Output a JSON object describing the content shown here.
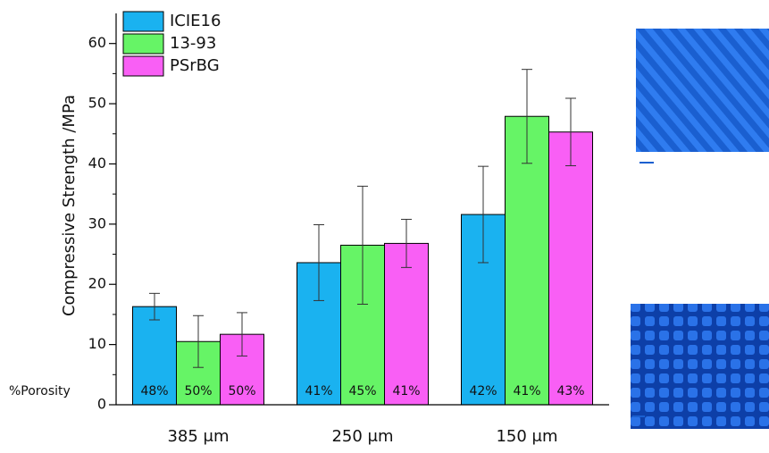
{
  "chart_data": {
    "type": "bar",
    "y_label": "Compressive Strength /MPa",
    "annotation": "%Porosity",
    "categories": [
      "385 μm",
      "250  μm",
      "150 μm"
    ],
    "series": [
      {
        "name": "ICIE16",
        "color": "#1ab2f0",
        "values": [
          16.3,
          23.6,
          31.6
        ],
        "errors": [
          2.2,
          6.3,
          8.0
        ],
        "porosity_labels": [
          "48%",
          "41%",
          "42%"
        ]
      },
      {
        "name": "13-93",
        "color": "#66f466",
        "values": [
          10.5,
          26.5,
          47.9
        ],
        "errors": [
          4.3,
          9.8,
          7.8
        ],
        "porosity_labels": [
          "50%",
          "45%",
          "41%"
        ]
      },
      {
        "name": "PSrBG",
        "color": "#f95ff5",
        "values": [
          11.7,
          26.8,
          45.3
        ],
        "errors": [
          3.6,
          4.0,
          5.6
        ],
        "porosity_labels": [
          "50%",
          "41%",
          "43%"
        ]
      }
    ],
    "ylim": [
      0,
      65
    ],
    "yticks": [
      0,
      10,
      20,
      30,
      40,
      50,
      60
    ],
    "yminorticks": [
      5,
      15,
      25,
      35,
      45,
      55
    ],
    "legend": "upper-left"
  }
}
